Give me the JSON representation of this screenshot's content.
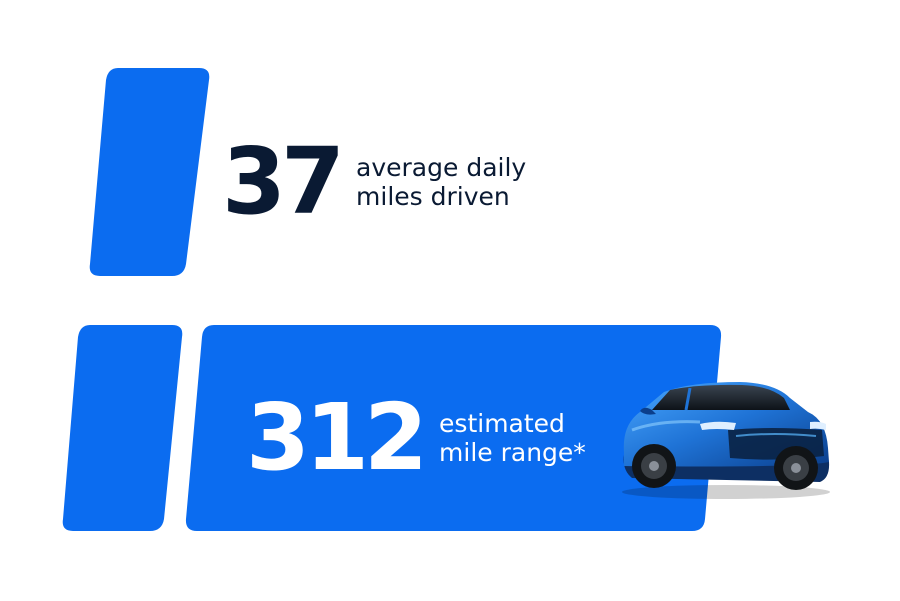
{
  "chart_data": {
    "type": "bar",
    "values": [
      37,
      312
    ],
    "labels": [
      [
        "average daily",
        "miles driven"
      ],
      [
        "estimated",
        "mile range*"
      ]
    ]
  },
  "colors": {
    "accent": "#0b6cf0",
    "number_dark": "#0a1a33",
    "text_light": "#ffffff",
    "background": "#ffffff"
  },
  "icons": [
    "blue-electric-suv-image"
  ]
}
